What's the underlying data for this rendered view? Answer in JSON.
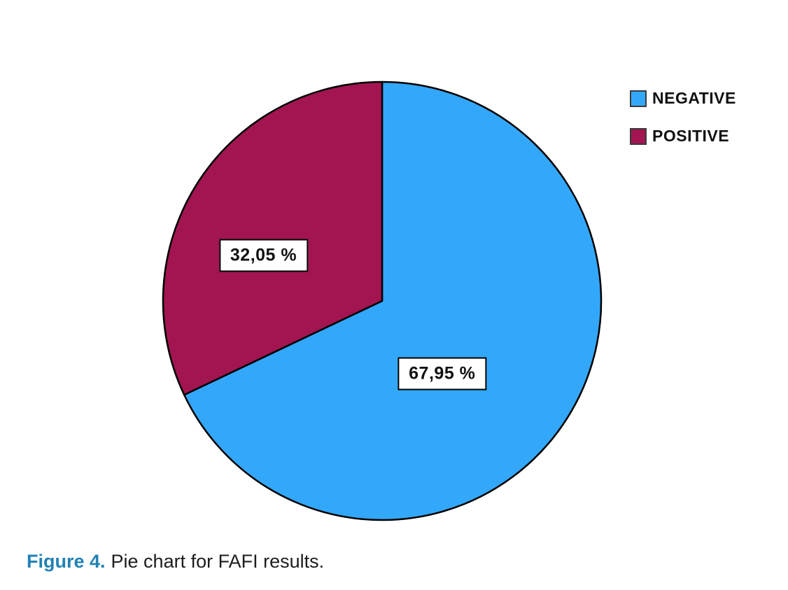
{
  "chart_data": {
    "type": "pie",
    "categories": [
      "NEGATIVE",
      "POSITIVE"
    ],
    "values": [
      67.95,
      32.05
    ],
    "value_labels": [
      "67,95 %",
      "32,05 %"
    ],
    "colors": [
      "#33a8fa",
      "#a21551"
    ],
    "slice_border_color": "#000000",
    "start_angle_deg": 0,
    "direction": "clockwise",
    "legend_position": "top-right",
    "label_anchors": [
      {
        "angle_deg": 140.4,
        "radius_frac": 0.43
      },
      {
        "angle_deg": 291.0,
        "radius_frac": 0.58
      }
    ]
  },
  "caption": {
    "label": "Figure 4.",
    "text": "Pie chart for FAFI results.",
    "label_color": "#2181b4",
    "text_color": "#1d1d1b"
  }
}
